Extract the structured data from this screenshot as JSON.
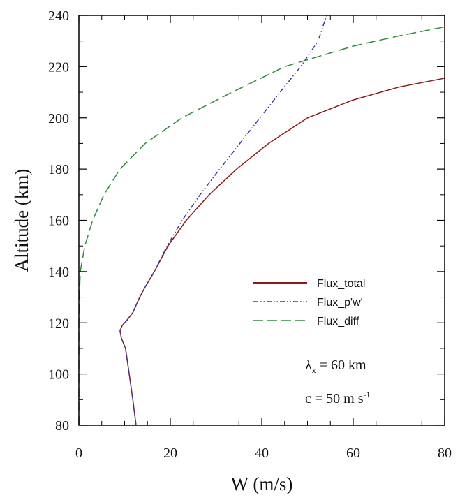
{
  "chart_data": {
    "type": "line",
    "xlabel": "W (m/s)",
    "ylabel": "Altitude (km)",
    "xlim": [
      0,
      80
    ],
    "ylim": [
      80,
      240
    ],
    "xticks": [
      0,
      20,
      40,
      60,
      80
    ],
    "yticks": [
      80,
      100,
      120,
      140,
      160,
      180,
      200,
      220,
      240
    ],
    "grid": false,
    "legend": "center-right",
    "series": [
      {
        "name": "Flux_total",
        "color": "#8b1a1a",
        "dash": "solid",
        "points": [
          [
            12.5,
            80
          ],
          [
            11.8,
            90
          ],
          [
            11.0,
            100
          ],
          [
            10.2,
            110
          ],
          [
            9.3,
            114
          ],
          [
            9.0,
            117
          ],
          [
            9.5,
            119
          ],
          [
            10.5,
            121
          ],
          [
            11.8,
            124
          ],
          [
            13.3,
            130
          ],
          [
            14.5,
            134
          ],
          [
            16.5,
            140
          ],
          [
            19.5,
            150
          ],
          [
            23.5,
            160
          ],
          [
            28.5,
            170
          ],
          [
            34.5,
            180
          ],
          [
            41.5,
            190
          ],
          [
            50.0,
            200
          ],
          [
            60.0,
            207
          ],
          [
            70.0,
            212
          ],
          [
            80.0,
            215.5
          ]
        ]
      },
      {
        "name": "Flux_p'w'",
        "color": "#3a3a9a",
        "dash": "dash-dot-dot",
        "points": [
          [
            12.5,
            80
          ],
          [
            11.8,
            90
          ],
          [
            11.0,
            100
          ],
          [
            10.2,
            110
          ],
          [
            9.3,
            114
          ],
          [
            9.0,
            117
          ],
          [
            9.5,
            119
          ],
          [
            10.5,
            121
          ],
          [
            11.8,
            124
          ],
          [
            13.3,
            130
          ],
          [
            14.5,
            134
          ],
          [
            16.5,
            140
          ],
          [
            19.3,
            150
          ],
          [
            22.6,
            160
          ],
          [
            26.5,
            170
          ],
          [
            30.8,
            180
          ],
          [
            35.2,
            190
          ],
          [
            39.6,
            200
          ],
          [
            44.0,
            210
          ],
          [
            48.5,
            220
          ],
          [
            52.3,
            230
          ],
          [
            54.2,
            240
          ]
        ]
      },
      {
        "name": "Flux_diff",
        "color": "#2e8b3e",
        "dash": "long-dash",
        "points": [
          [
            0,
            80
          ],
          [
            0,
            120
          ],
          [
            0.1,
            130
          ],
          [
            0.3,
            140
          ],
          [
            1.3,
            150
          ],
          [
            3.0,
            160
          ],
          [
            5.5,
            170
          ],
          [
            9.0,
            180
          ],
          [
            14.5,
            190
          ],
          [
            22.5,
            200
          ],
          [
            33.5,
            210
          ],
          [
            45.0,
            220
          ],
          [
            60.0,
            228
          ],
          [
            70.0,
            232
          ],
          [
            80.0,
            235.5
          ]
        ]
      }
    ],
    "annotations": {
      "lambda": {
        "symbol": "λ",
        "subscript": "x",
        "value": " = 60 km"
      },
      "phase_speed": {
        "text": "c = 50 m s",
        "superscript": "-1"
      }
    }
  }
}
